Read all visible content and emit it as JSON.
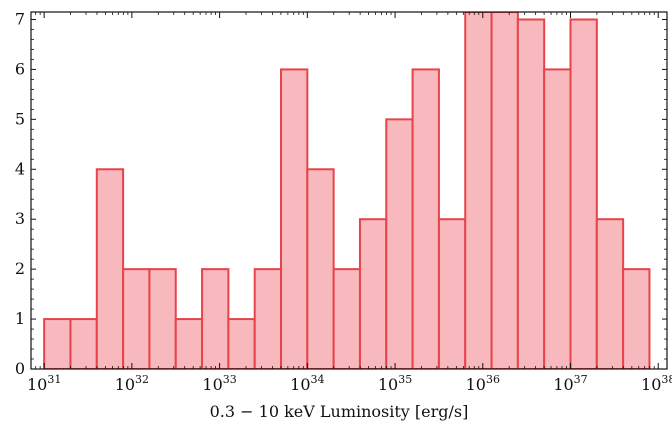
{
  "chart_data": {
    "type": "bar",
    "title": "",
    "xlabel": "0.3 − 10 keV Luminosity [erg/s]",
    "ylabel": "",
    "x_scale": "log",
    "xlim_log10": [
      30.85,
      38.1
    ],
    "ylim": [
      0,
      7.15
    ],
    "bin_edges_log10": [
      31.0,
      31.3,
      31.6,
      31.9,
      32.2,
      32.5,
      32.8,
      33.1,
      33.4,
      33.7,
      34.0,
      34.3,
      34.6,
      34.9,
      35.2,
      35.5,
      35.8,
      36.1,
      36.4,
      36.7,
      37.0,
      37.3,
      37.6,
      37.9
    ],
    "values": [
      1,
      1,
      4,
      2,
      2,
      1,
      2,
      1,
      2,
      6,
      4,
      2,
      3,
      5,
      6,
      3,
      7.5,
      8,
      7,
      6,
      7,
      3,
      2
    ],
    "y_ticks": [
      "0",
      "1",
      "2",
      "3",
      "4",
      "5",
      "6",
      "7"
    ],
    "x_tick_labels": [
      {
        "base": "10",
        "exp": "31"
      },
      {
        "base": "10",
        "exp": "32"
      },
      {
        "base": "10",
        "exp": "33"
      },
      {
        "base": "10",
        "exp": "34"
      },
      {
        "base": "10",
        "exp": "35"
      },
      {
        "base": "10",
        "exp": "36"
      },
      {
        "base": "10",
        "exp": "37"
      },
      {
        "base": "10",
        "exp": "38"
      }
    ],
    "colors": {
      "fill": "#f7b9bd",
      "edge": "#e8434b"
    },
    "grid": false,
    "legend": "none"
  }
}
